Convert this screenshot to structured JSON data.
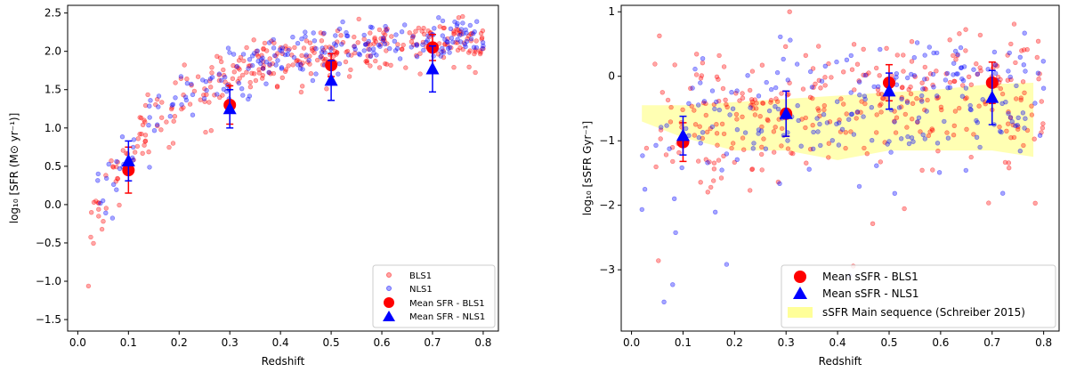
{
  "chart_data": [
    {
      "type": "scatter",
      "xlabel": "Redshift",
      "ylabel": "log₁₀ [SFR (M⊙ yr⁻¹)]",
      "xlim": [
        -0.02,
        0.83
      ],
      "ylim": [
        -1.65,
        2.6
      ],
      "xticks": [
        "0.0",
        "0.1",
        "0.2",
        "0.3",
        "0.4",
        "0.5",
        "0.6",
        "0.7",
        "0.8"
      ],
      "yticks": [
        "−1.5",
        "−1.0",
        "−0.5",
        "0.0",
        "0.5",
        "1.0",
        "1.5",
        "2.0",
        "2.5"
      ],
      "grid": false,
      "legend_position": "lower-right",
      "legend": [
        "BLS1",
        "NLS1",
        "Mean SFR - BLS1",
        "Mean SFR - NLS1"
      ],
      "colors": {
        "bls1": "#ff0000",
        "nls1": "#0000ff",
        "mean_bls1": "#ff0000",
        "mean_nls1": "#0000ff"
      },
      "scatter_trend": {
        "min": -0.6,
        "amp": 2.75,
        "scale": 0.16,
        "spread_low": 0.55,
        "spread_high": 0.32
      },
      "mean_bls1": {
        "x": [
          0.1,
          0.3,
          0.5,
          0.7
        ],
        "y": [
          0.45,
          1.3,
          1.82,
          2.05
        ],
        "yerr": [
          0.3,
          0.25,
          0.15,
          0.17
        ]
      },
      "mean_nls1": {
        "x": [
          0.1,
          0.3,
          0.5,
          0.7
        ],
        "y": [
          0.57,
          1.25,
          1.62,
          1.77
        ],
        "yerr": [
          0.26,
          0.25,
          0.26,
          0.3
        ]
      }
    },
    {
      "type": "scatter",
      "xlabel": "Redshift",
      "ylabel": "log₁₀ [sSFR Gyr⁻¹]",
      "xlim": [
        -0.02,
        0.83
      ],
      "ylim": [
        -3.95,
        1.1
      ],
      "xticks": [
        "0.0",
        "0.1",
        "0.2",
        "0.3",
        "0.4",
        "0.5",
        "0.6",
        "0.7",
        "0.8"
      ],
      "yticks": [
        "−3",
        "−2",
        "−1",
        "0",
        "1"
      ],
      "grid": false,
      "legend_position": "lower-right",
      "legend": [
        "Mean sSFR - BLS1",
        "Mean sSFR - NLS1",
        "sSFR Main sequence (Schreiber 2015)"
      ],
      "colors": {
        "bls1": "#ff0000",
        "nls1": "#0000ff",
        "band": "#ffff99"
      },
      "scatter_trend": {
        "min": -1.05,
        "amp": 0.85,
        "scale": 0.3,
        "spread_low": 1.5,
        "spread_high": 1.1
      },
      "mean_bls1": {
        "x": [
          0.1,
          0.3,
          0.5,
          0.7
        ],
        "y": [
          -1.02,
          -0.58,
          -0.1,
          -0.1
        ],
        "yerr": [
          0.3,
          0.35,
          0.28,
          0.32
        ]
      },
      "mean_nls1": {
        "x": [
          0.1,
          0.3,
          0.5,
          0.7
        ],
        "y": [
          -0.92,
          -0.58,
          -0.23,
          -0.33
        ],
        "yerr": [
          0.3,
          0.35,
          0.28,
          0.42
        ]
      },
      "main_sequence_band": {
        "x": [
          0.02,
          0.1,
          0.2,
          0.3,
          0.4,
          0.5,
          0.6,
          0.7,
          0.78
        ],
        "upper": [
          -0.45,
          -0.45,
          -0.4,
          -0.35,
          -0.3,
          -0.25,
          -0.2,
          -0.12,
          -0.1
        ],
        "lower": [
          -0.7,
          -0.95,
          -1.15,
          -1.15,
          -1.3,
          -1.15,
          -1.15,
          -1.15,
          -1.25
        ]
      }
    }
  ]
}
